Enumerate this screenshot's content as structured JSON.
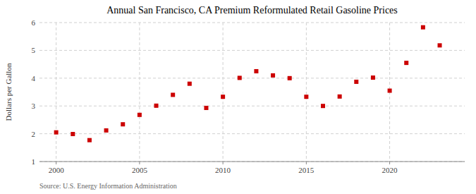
{
  "chart_data": {
    "type": "scatter",
    "title": "Annual San Francisco, CA Premium Reformulated Retail Gasoline Prices",
    "ylabel": "Dollars per Gallon",
    "source": "Source: U.S. Energy Information Administration",
    "x": [
      2000,
      2001,
      2002,
      2003,
      2004,
      2005,
      2006,
      2007,
      2008,
      2009,
      2010,
      2011,
      2012,
      2013,
      2014,
      2015,
      2016,
      2017,
      2018,
      2019,
      2020,
      2021,
      2022,
      2023
    ],
    "values": [
      2.05,
      1.99,
      1.77,
      2.12,
      2.34,
      2.68,
      3.01,
      3.4,
      3.8,
      2.93,
      3.33,
      4.01,
      4.25,
      4.1,
      4.0,
      3.33,
      3.0,
      3.34,
      3.87,
      4.02,
      3.55,
      4.55,
      5.83,
      5.18
    ],
    "color": "#cc0000",
    "marker": "square",
    "xlim": [
      1999,
      2024.5
    ],
    "ylim": [
      1,
      6
    ],
    "xticks": [
      2000,
      2005,
      2010,
      2015,
      2020
    ],
    "yticks": [
      1,
      2,
      3,
      4,
      5,
      6
    ],
    "grid": true
  }
}
